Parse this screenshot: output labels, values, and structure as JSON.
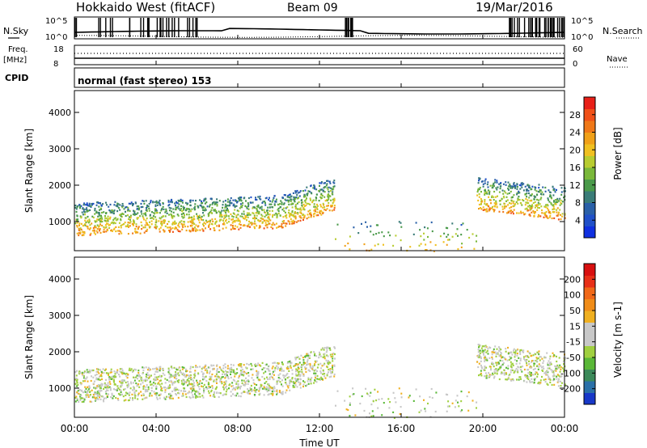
{
  "header": {
    "title": "Hokkaido West (fitACF)",
    "beam": "Beam 09",
    "date": "19/Mar/2016"
  },
  "strip": {
    "nsky_label": "N.Sky",
    "nsky_ticks": [
      "10^5",
      "10^0"
    ],
    "nsearch_label": "N.Search",
    "freq_label": "Freq.",
    "freq_unit": "[MHz]",
    "freq_ticks": [
      "18",
      "8"
    ],
    "nave_label": "Nave",
    "nave_ticks": [
      "60",
      "0"
    ],
    "cpid_label": "CPID",
    "cpid_value": "normal (fast stereo) 153"
  },
  "chart_data": [
    {
      "type": "heatmap",
      "name": "power",
      "ylabel": "Slant Range [km]",
      "ylim": [
        200,
        4600
      ],
      "yticks": [
        1000,
        2000,
        3000,
        4000
      ],
      "colorbar_label": "Power [dB]",
      "colorbar_ticks": [
        "4",
        "8",
        "12",
        "16",
        "20",
        "24",
        "28"
      ],
      "colorbar_colors": [
        "#1030e0",
        "#2050c8",
        "#2a60a8",
        "#3a7c78",
        "#4a9a4a",
        "#7ab83a",
        "#b8cc30",
        "#f0c020",
        "#f0a018",
        "#f07818",
        "#f05018",
        "#e82018"
      ]
    },
    {
      "type": "heatmap",
      "name": "velocity",
      "ylabel": "Slant Range [km]",
      "ylim": [
        200,
        4600
      ],
      "yticks": [
        1000,
        2000,
        3000,
        4000
      ],
      "colorbar_label": "Velocity [m s-1]",
      "colorbar_ticks": [
        "200",
        "100",
        "50",
        "15",
        "-15",
        "-50",
        "-100",
        "-200"
      ],
      "colorbar_colors": [
        "#1838c8",
        "#2a70a8",
        "#3c8a5a",
        "#5ab838",
        "#a0d040",
        "#c8c8c8",
        "#c8c8c8",
        "#f0b020",
        "#f08c18",
        "#f06818",
        "#e83018",
        "#d81010"
      ]
    }
  ],
  "time_axis": {
    "label": "Time UT",
    "ticks": [
      "00:00",
      "04:00",
      "08:00",
      "12:00",
      "16:00",
      "20:00",
      "00:00"
    ]
  }
}
